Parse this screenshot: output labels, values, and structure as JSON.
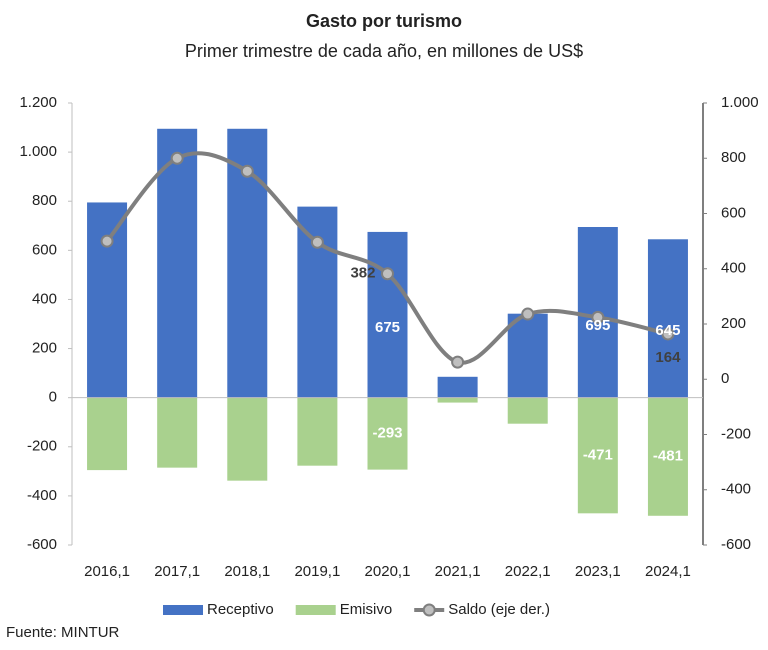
{
  "chart_data": {
    "type": "bar-line",
    "title": "Gasto por turismo",
    "subtitle": "Primer trimestre de cada año, en millones de US$",
    "source": "Fuente: MINTUR",
    "categories": [
      "2016,1",
      "2017,1",
      "2018,1",
      "2019,1",
      "2020,1",
      "2021,1",
      "2022,1",
      "2023,1",
      "2024,1"
    ],
    "series": [
      {
        "name": "Receptivo",
        "color": "#4472c4",
        "type": "bar",
        "values": [
          795,
          1095,
          1095,
          778,
          675,
          85,
          342,
          695,
          645
        ],
        "value_labels": [
          null,
          null,
          null,
          null,
          "675",
          null,
          null,
          "695",
          "645"
        ]
      },
      {
        "name": "Emisivo",
        "color": "#a9d18e",
        "type": "bar",
        "values": [
          -295,
          -285,
          -338,
          -277,
          -293,
          -20,
          -106,
          -471,
          -481
        ],
        "value_labels": [
          null,
          null,
          null,
          null,
          "-293",
          null,
          null,
          "-471",
          "-481"
        ]
      },
      {
        "name": "Saldo (eje der.)",
        "color": "#7f7f7f",
        "type": "line",
        "axis": "y2",
        "values": [
          500,
          800,
          753,
          496,
          382,
          62,
          236,
          224,
          164
        ],
        "value_labels": [
          null,
          null,
          null,
          null,
          "382",
          null,
          null,
          null,
          "164"
        ]
      }
    ],
    "ylim": [
      -600,
      1200
    ],
    "yticks": [
      -600,
      -400,
      -200,
      0,
      200,
      400,
      600,
      800,
      {
        "value": 1000,
        "label": "1.000"
      },
      {
        "value": 1200,
        "label": "1.200"
      }
    ],
    "y2lim": [
      -600,
      1000
    ],
    "y2ticks": [
      -600,
      -400,
      -200,
      0,
      200,
      400,
      600,
      800,
      {
        "value": 1000,
        "label": "1.000"
      }
    ],
    "legend": "bottom"
  }
}
